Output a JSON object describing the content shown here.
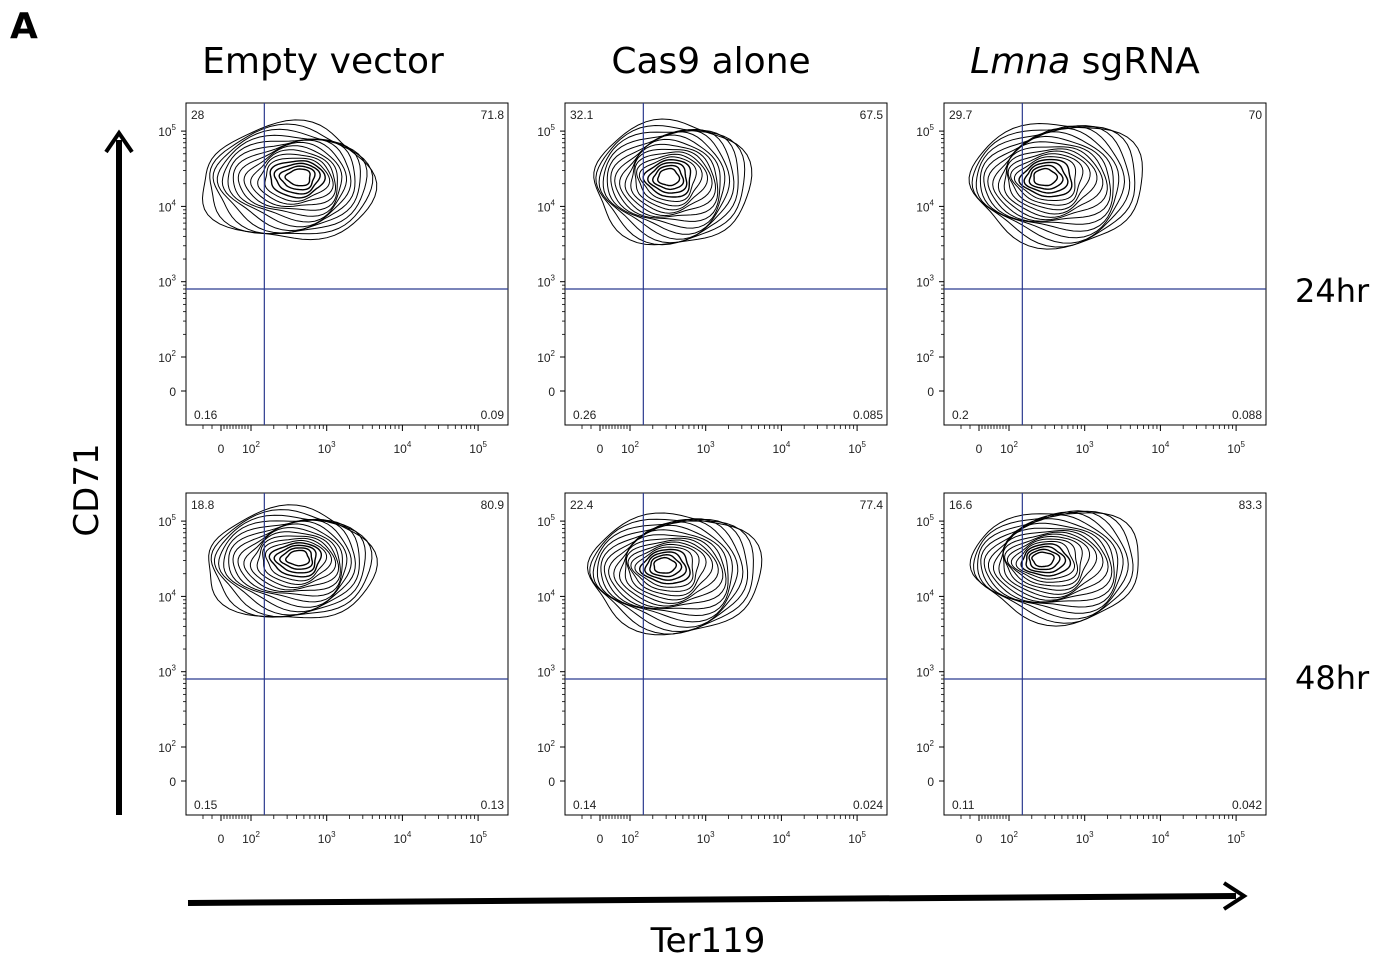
{
  "figure": {
    "panel_letter": "A",
    "column_titles": [
      {
        "text": "Empty vector",
        "italic_part": "",
        "rest": ""
      },
      {
        "text": "Cas9 alone",
        "italic_part": "",
        "rest": ""
      },
      {
        "text": "",
        "italic_part": "Lmna",
        "rest": " sgRNA"
      }
    ],
    "row_titles": [
      "24hr",
      "48hr"
    ],
    "y_axis_title": "CD71",
    "x_axis_title": "Ter119"
  },
  "chart_data": {
    "type": "contour",
    "x_scale": "biexponential",
    "y_scale": "biexponential",
    "x_ticks": [
      "0",
      "10^2",
      "10^3",
      "10^4",
      "10^5"
    ],
    "y_ticks": [
      "10^5",
      "10^4",
      "10^3",
      "10^2",
      "0"
    ],
    "gate": {
      "x": 150,
      "y": 800
    },
    "plots": [
      {
        "row": "24hr",
        "column": "Empty vector",
        "quadrants": {
          "upper_left": "28",
          "upper_right": "71.8",
          "lower_left": "0.16",
          "lower_right": "0.09"
        }
      },
      {
        "row": "24hr",
        "column": "Cas9 alone",
        "quadrants": {
          "upper_left": "32.1",
          "upper_right": "67.5",
          "lower_left": "0.26",
          "lower_right": "0.085"
        }
      },
      {
        "row": "24hr",
        "column": "Lmna sgRNA",
        "quadrants": {
          "upper_left": "29.7",
          "upper_right": "70",
          "lower_left": "0.2",
          "lower_right": "0.088"
        }
      },
      {
        "row": "48hr",
        "column": "Empty vector",
        "quadrants": {
          "upper_left": "18.8",
          "upper_right": "80.9",
          "lower_left": "0.15",
          "lower_right": "0.13"
        }
      },
      {
        "row": "48hr",
        "column": "Cas9 alone",
        "quadrants": {
          "upper_left": "22.4",
          "upper_right": "77.4",
          "lower_left": "0.14",
          "lower_right": "0.024"
        }
      },
      {
        "row": "48hr",
        "column": "Lmna sgRNA",
        "quadrants": {
          "upper_left": "16.6",
          "upper_right": "83.3",
          "lower_left": "0.11",
          "lower_right": "0.042"
        }
      }
    ]
  }
}
